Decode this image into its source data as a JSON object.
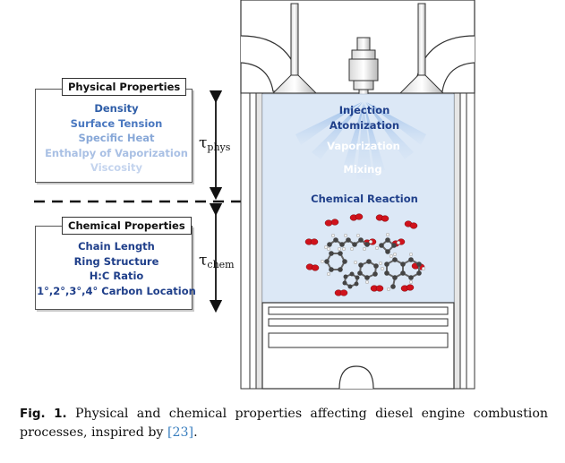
{
  "physical": {
    "title": "Physical Properties",
    "items": [
      {
        "label": "Density",
        "color": "#2f5ea8"
      },
      {
        "label": "Surface Tension",
        "color": "#4a78c0"
      },
      {
        "label": "Specific Heat",
        "color": "#88a8d8"
      },
      {
        "label": "Enthalpy of Vaporization",
        "color": "#a9c0e4"
      },
      {
        "label": "Viscosity",
        "color": "#c4d4ee"
      }
    ]
  },
  "chemical": {
    "title": "Chemical Properties",
    "items": [
      {
        "label": "Chain Length"
      },
      {
        "label": "Ring Structure"
      },
      {
        "label": "H:C Ratio"
      },
      {
        "label": "1°,2°,3°,4° Carbon Location"
      }
    ],
    "color": "#1f3f8a"
  },
  "timescales": {
    "phys_symbol": "τ",
    "phys_sub": "phys",
    "chem_symbol": "τ",
    "chem_sub": "chem"
  },
  "cylinder": {
    "injection": "Injection",
    "atomization": "Atomization",
    "vaporization": "Vaporization",
    "mixing": "Mixing",
    "reaction": "Chemical Reaction"
  },
  "caption": {
    "label": "Fig. 1.",
    "text": " Physical and chemical properties affecting diesel engine combustion processes, inspired by ",
    "ref": "[23]",
    "end": "."
  },
  "colors": {
    "cylinder_fill": "#dce8f6",
    "spray": "#a6c6ea",
    "text_dark_blue": "#1f3f8a",
    "oxygen_red": "#d0121b"
  }
}
